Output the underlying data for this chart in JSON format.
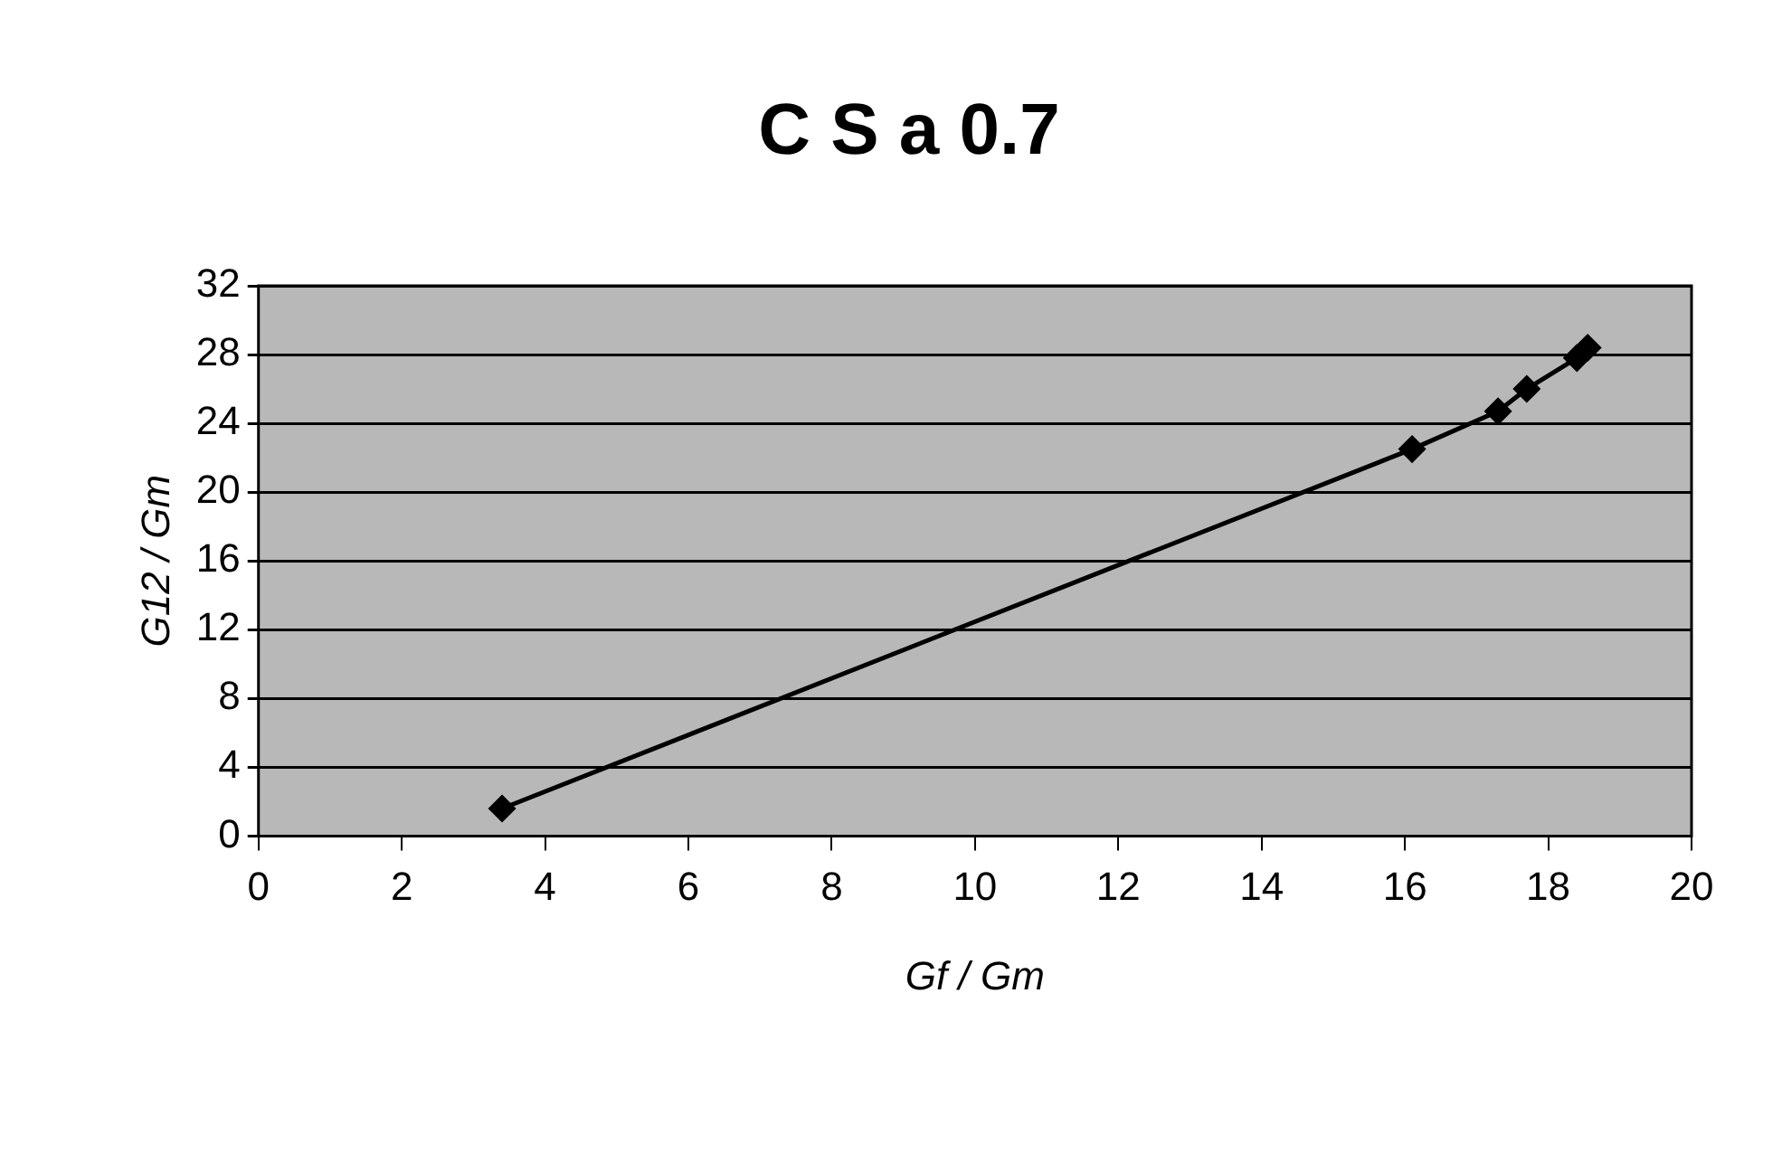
{
  "chart_data": {
    "type": "line",
    "title": "C S a 0.7",
    "xlabel": "Gf / Gm",
    "ylabel": "G12 / Gm",
    "x": [
      3.4,
      16.1,
      17.3,
      17.7,
      18.4,
      18.55
    ],
    "series": [
      {
        "color": "#000000",
        "values": [
          1.6,
          22.5,
          24.7,
          26.0,
          27.8,
          28.4
        ]
      }
    ],
    "xlim": [
      0,
      20
    ],
    "xticks": [
      0,
      2,
      4,
      6,
      8,
      10,
      12,
      14,
      16,
      18,
      20
    ],
    "ylim": [
      0,
      32
    ],
    "yticks": [
      0,
      4,
      8,
      12,
      16,
      20,
      24,
      28,
      32
    ],
    "grid": "y",
    "legend": false,
    "marker": "diamond",
    "line_style": "solid"
  }
}
